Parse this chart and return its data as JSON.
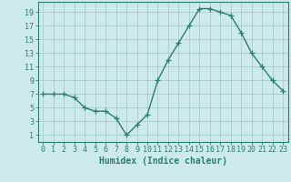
{
  "x": [
    0,
    1,
    2,
    3,
    4,
    5,
    6,
    7,
    8,
    9,
    10,
    11,
    12,
    13,
    14,
    15,
    16,
    17,
    18,
    19,
    20,
    21,
    22,
    23
  ],
  "y": [
    7,
    7,
    7,
    6.5,
    5,
    4.5,
    4.5,
    3.5,
    1,
    2.5,
    4,
    9,
    12,
    14.5,
    17,
    19.5,
    19.5,
    19,
    18.5,
    16,
    13,
    11,
    9,
    7.5
  ],
  "line_color": "#2e7d6e",
  "marker": "+",
  "bg_color": "#cceaea",
  "grid_color": "#aacccc",
  "xlabel": "Humidex (Indice chaleur)",
  "ylabel_ticks": [
    1,
    3,
    5,
    7,
    9,
    11,
    13,
    15,
    17,
    19
  ],
  "xlim": [
    -0.5,
    23.5
  ],
  "ylim": [
    0,
    20.5
  ],
  "axis_color": "#2e7d6e",
  "tick_color": "#2e7d6e",
  "label_color": "#2e7d6e",
  "font_size_label": 7,
  "font_size_tick": 6,
  "line_width": 1.0,
  "marker_size": 4
}
